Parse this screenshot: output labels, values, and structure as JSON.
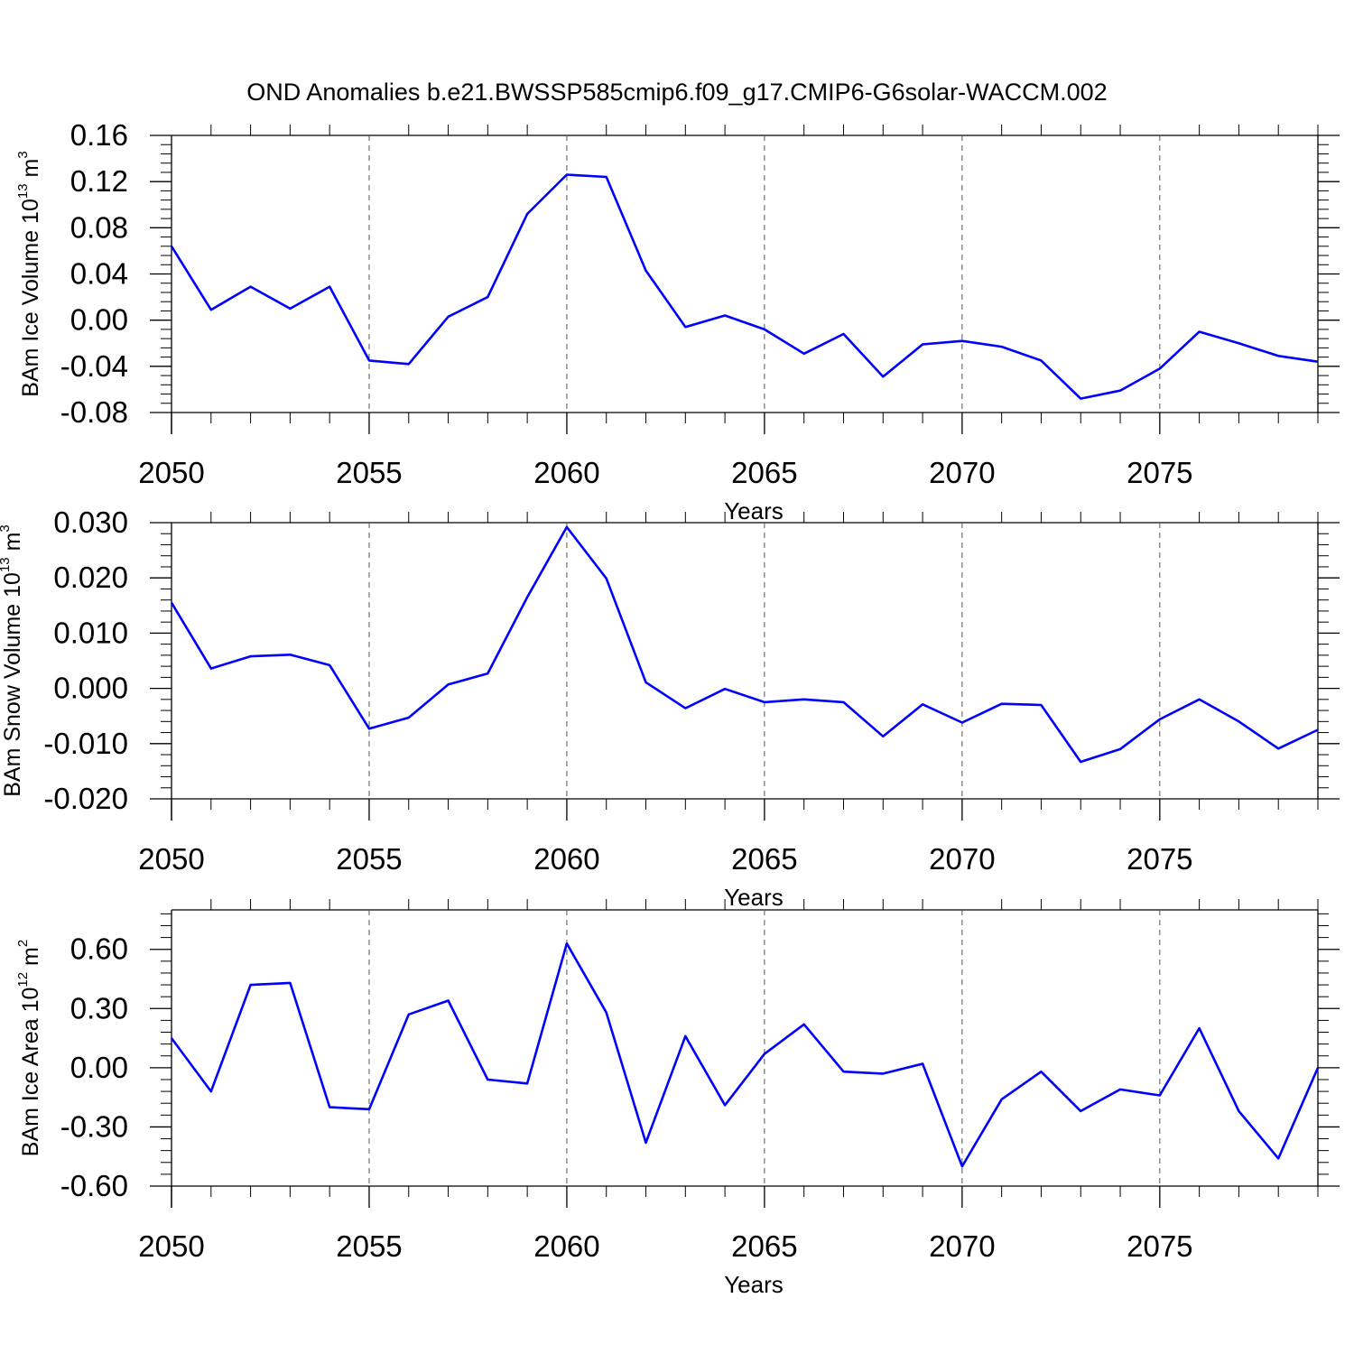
{
  "title": "OND Anomalies b.e21.BWSSP585cmip6.f09_g17.CMIP6-G6solar-WACCM.002",
  "colors": {
    "line": "#0000ff",
    "axis": "#000000",
    "grid": "#555555"
  },
  "chart_data": [
    {
      "type": "line",
      "ylabel_main": "BAm Ice Volume 10",
      "ylabel_exp": "13",
      "ylabel_unit": " m",
      "ylabel_unit_exp": "3",
      "xlabel": "Years",
      "xlim": [
        2050,
        2079
      ],
      "ylim": [
        -0.08,
        0.16
      ],
      "xticks": [
        2050,
        2055,
        2060,
        2065,
        2070,
        2075
      ],
      "xtick_labels": [
        "2050",
        "2055",
        "2060",
        "2065",
        "2070",
        "2075"
      ],
      "yticks": [
        -0.08,
        -0.04,
        0.0,
        0.04,
        0.08,
        0.12,
        0.16
      ],
      "ytick_labels": [
        "-0.08",
        "-0.04",
        "0.00",
        "0.04",
        "0.08",
        "0.12",
        "0.16"
      ],
      "grid_x": true,
      "x": [
        2050,
        2051,
        2052,
        2053,
        2054,
        2055,
        2056,
        2057,
        2058,
        2059,
        2060,
        2061,
        2062,
        2063,
        2064,
        2065,
        2066,
        2067,
        2068,
        2069,
        2070,
        2071,
        2072,
        2073,
        2074,
        2075,
        2076,
        2077,
        2078,
        2079
      ],
      "values": [
        0.064,
        0.009,
        0.029,
        0.01,
        0.029,
        -0.035,
        -0.038,
        0.003,
        0.02,
        0.092,
        0.126,
        0.124,
        0.043,
        -0.006,
        0.004,
        -0.008,
        -0.029,
        -0.012,
        -0.049,
        -0.021,
        -0.018,
        -0.023,
        -0.035,
        -0.068,
        -0.061,
        -0.042,
        -0.01,
        -0.02,
        -0.031,
        -0.036
      ]
    },
    {
      "type": "line",
      "ylabel_main": "BAm Snow Volume 10",
      "ylabel_exp": "13",
      "ylabel_unit": " m",
      "ylabel_unit_exp": "3",
      "xlabel": "Years",
      "xlim": [
        2050,
        2079
      ],
      "ylim": [
        -0.02,
        0.03
      ],
      "xticks": [
        2050,
        2055,
        2060,
        2065,
        2070,
        2075
      ],
      "xtick_labels": [
        "2050",
        "2055",
        "2060",
        "2065",
        "2070",
        "2075"
      ],
      "yticks": [
        -0.02,
        -0.01,
        0.0,
        0.01,
        0.02,
        0.03
      ],
      "ytick_labels": [
        "-0.020",
        "-0.010",
        "0.000",
        "0.010",
        "0.020",
        "0.030"
      ],
      "grid_x": true,
      "x": [
        2050,
        2051,
        2052,
        2053,
        2054,
        2055,
        2056,
        2057,
        2058,
        2059,
        2060,
        2061,
        2062,
        2063,
        2064,
        2065,
        2066,
        2067,
        2068,
        2069,
        2070,
        2071,
        2072,
        2073,
        2074,
        2075,
        2076,
        2077,
        2078,
        2079
      ],
      "values": [
        0.0155,
        0.0036,
        0.0058,
        0.0061,
        0.0042,
        -0.0073,
        -0.0053,
        0.0007,
        0.0027,
        0.0165,
        0.0292,
        0.0199,
        0.0011,
        -0.0036,
        -0.0001,
        -0.0025,
        -0.002,
        -0.0025,
        -0.0087,
        -0.0029,
        -0.0062,
        -0.0028,
        -0.003,
        -0.0133,
        -0.011,
        -0.0056,
        -0.002,
        -0.006,
        -0.0109,
        -0.0075
      ]
    },
    {
      "type": "line",
      "ylabel_main": "BAm Ice Area 10",
      "ylabel_exp": "12",
      "ylabel_unit": " m",
      "ylabel_unit_exp": "2",
      "xlabel": "Years",
      "xlim": [
        2050,
        2079
      ],
      "ylim": [
        -0.6,
        0.8
      ],
      "xticks": [
        2050,
        2055,
        2060,
        2065,
        2070,
        2075
      ],
      "xtick_labels": [
        "2050",
        "2055",
        "2060",
        "2065",
        "2070",
        "2075"
      ],
      "yticks": [
        -0.6,
        -0.3,
        0.0,
        0.3,
        0.6
      ],
      "ytick_labels": [
        "-0.60",
        "-0.30",
        "0.00",
        "0.30",
        "0.60"
      ],
      "grid_x": true,
      "x": [
        2050,
        2051,
        2052,
        2053,
        2054,
        2055,
        2056,
        2057,
        2058,
        2059,
        2060,
        2061,
        2062,
        2063,
        2064,
        2065,
        2066,
        2067,
        2068,
        2069,
        2070,
        2071,
        2072,
        2073,
        2074,
        2075,
        2076,
        2077,
        2078,
        2079
      ],
      "values": [
        0.15,
        -0.12,
        0.42,
        0.43,
        -0.2,
        -0.21,
        0.27,
        0.34,
        -0.06,
        -0.08,
        0.63,
        0.28,
        -0.38,
        0.16,
        -0.19,
        0.07,
        0.22,
        -0.02,
        -0.03,
        0.02,
        -0.5,
        -0.16,
        -0.02,
        -0.22,
        -0.11,
        -0.14,
        0.2,
        -0.22,
        -0.46,
        0.0
      ]
    }
  ]
}
